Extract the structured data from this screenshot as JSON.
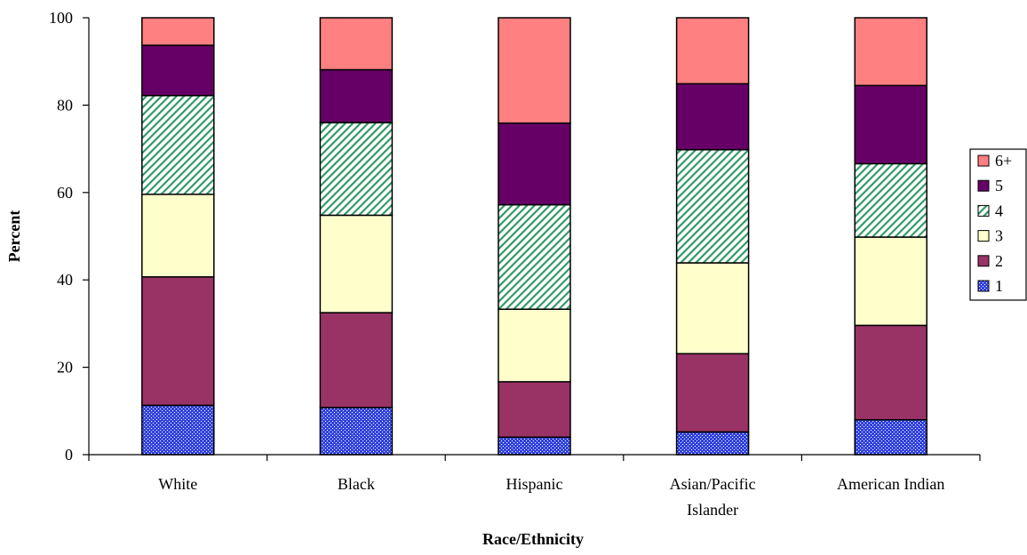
{
  "chart_data": {
    "type": "bar",
    "stacked": true,
    "title": "",
    "xlabel": "Race/Ethnicity",
    "ylabel": "Percent",
    "ylim": [
      0,
      100
    ],
    "yticks": [
      0,
      20,
      40,
      60,
      80,
      100
    ],
    "grid": false,
    "legend_position": "right",
    "categories": [
      "White",
      "Black",
      "Hispanic",
      "Asian/Pacific Islander",
      "American Indian"
    ],
    "category_lines": [
      [
        "White"
      ],
      [
        "Black"
      ],
      [
        "Hispanic"
      ],
      [
        "Asian/Pacific",
        "Islander"
      ],
      [
        "American Indian"
      ]
    ],
    "series": [
      {
        "name": "1",
        "color": "#3344dd",
        "pattern": "dots",
        "values": [
          11.3,
          10.8,
          4.0,
          5.2,
          8.0
        ]
      },
      {
        "name": "2",
        "color": "#993366",
        "pattern": "solid",
        "values": [
          29.4,
          21.7,
          12.7,
          17.9,
          21.6
        ]
      },
      {
        "name": "3",
        "color": "#ffffcc",
        "pattern": "solid",
        "values": [
          18.9,
          22.3,
          16.6,
          20.8,
          20.2
        ]
      },
      {
        "name": "4",
        "color": "#339966",
        "pattern": "diagonal",
        "values": [
          22.6,
          21.2,
          23.9,
          25.9,
          16.8
        ]
      },
      {
        "name": "5",
        "color": "#660066",
        "pattern": "solid",
        "values": [
          11.5,
          12.1,
          18.7,
          15.1,
          17.9
        ]
      },
      {
        "name": "6+",
        "color": "#ff8080",
        "pattern": "solid",
        "values": [
          6.3,
          11.9,
          24.1,
          15.1,
          15.5
        ]
      }
    ]
  }
}
